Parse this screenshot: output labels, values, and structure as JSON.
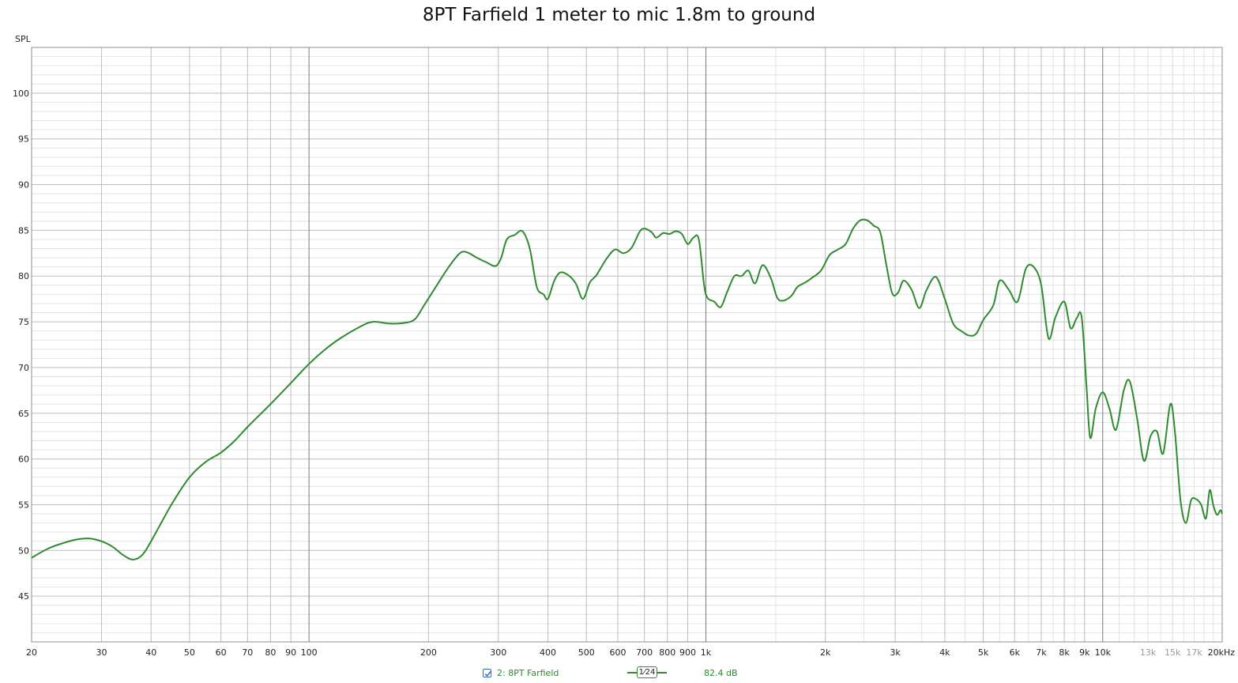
{
  "title": "8PT Farfield 1 meter to mic 1.8m to ground",
  "colors": {
    "series": "#2e8b2e",
    "grid_major": "#bdbdbd",
    "grid_minor": "#e2e2e2",
    "grid_decade": "#7a7a7a",
    "axis_text": "#222222",
    "checkbox": "#2a6fc9"
  },
  "legend": {
    "checkbox_icon": "checkbox-checked-icon",
    "checked": true,
    "series_label": "2: 8PT Farfield",
    "smoothing_label": "1⁄24",
    "value_label": "82.4 dB"
  },
  "chart_data": {
    "type": "line",
    "title": "8PT Farfield 1 meter to mic 1.8m to ground",
    "xlabel": "",
    "ylabel": "SPL",
    "x_unit": "Hz",
    "x_scale": "log",
    "xlim": [
      20,
      20000
    ],
    "ylim": [
      40,
      105
    ],
    "grid": true,
    "x_ticks": [
      {
        "value": 20,
        "label": "20"
      },
      {
        "value": 30,
        "label": "30"
      },
      {
        "value": 40,
        "label": "40"
      },
      {
        "value": 50,
        "label": "50"
      },
      {
        "value": 60,
        "label": "60"
      },
      {
        "value": 70,
        "label": "70"
      },
      {
        "value": 80,
        "label": "80"
      },
      {
        "value": 90,
        "label": "90"
      },
      {
        "value": 100,
        "label": "100"
      },
      {
        "value": 200,
        "label": "200"
      },
      {
        "value": 300,
        "label": "300"
      },
      {
        "value": 400,
        "label": "400"
      },
      {
        "value": 500,
        "label": "500"
      },
      {
        "value": 600,
        "label": "600"
      },
      {
        "value": 700,
        "label": "700"
      },
      {
        "value": 800,
        "label": "800"
      },
      {
        "value": 900,
        "label": "900"
      },
      {
        "value": 1000,
        "label": "1k"
      },
      {
        "value": 2000,
        "label": "2k"
      },
      {
        "value": 3000,
        "label": "3k"
      },
      {
        "value": 4000,
        "label": "4k"
      },
      {
        "value": 5000,
        "label": "5k"
      },
      {
        "value": 6000,
        "label": "6k"
      },
      {
        "value": 7000,
        "label": "7k"
      },
      {
        "value": 8000,
        "label": "8k"
      },
      {
        "value": 9000,
        "label": "9k"
      },
      {
        "value": 10000,
        "label": "10k"
      },
      {
        "value": 13000,
        "label": "13k",
        "faded": true
      },
      {
        "value": 15000,
        "label": "15k",
        "faded": true
      },
      {
        "value": 17000,
        "label": "17k",
        "faded": true
      },
      {
        "value": 20000,
        "label": "20kHz"
      }
    ],
    "y_ticks": [
      45,
      50,
      55,
      60,
      65,
      70,
      75,
      80,
      85,
      90,
      95,
      100
    ],
    "series": [
      {
        "name": "2: 8PT Farfield",
        "points": [
          [
            20,
            49.2
          ],
          [
            22,
            50.2
          ],
          [
            24,
            50.8
          ],
          [
            26,
            51.2
          ],
          [
            28,
            51.3
          ],
          [
            30,
            51.0
          ],
          [
            32,
            50.4
          ],
          [
            34,
            49.5
          ],
          [
            36,
            49.0
          ],
          [
            38,
            49.5
          ],
          [
            40,
            51.0
          ],
          [
            45,
            55.0
          ],
          [
            50,
            58.0
          ],
          [
            55,
            59.7
          ],
          [
            60,
            60.7
          ],
          [
            65,
            62.0
          ],
          [
            70,
            63.5
          ],
          [
            80,
            66.0
          ],
          [
            90,
            68.3
          ],
          [
            100,
            70.4
          ],
          [
            110,
            72.0
          ],
          [
            120,
            73.2
          ],
          [
            135,
            74.5
          ],
          [
            145,
            75.0
          ],
          [
            160,
            74.8
          ],
          [
            175,
            74.9
          ],
          [
            185,
            75.3
          ],
          [
            195,
            76.8
          ],
          [
            210,
            79.0
          ],
          [
            225,
            81.0
          ],
          [
            240,
            82.5
          ],
          [
            250,
            82.6
          ],
          [
            265,
            82.0
          ],
          [
            280,
            81.5
          ],
          [
            295,
            81.1
          ],
          [
            305,
            82.0
          ],
          [
            315,
            84.0
          ],
          [
            330,
            84.5
          ],
          [
            345,
            84.9
          ],
          [
            360,
            83.0
          ],
          [
            375,
            78.8
          ],
          [
            390,
            78.0
          ],
          [
            400,
            77.5
          ],
          [
            415,
            79.5
          ],
          [
            430,
            80.4
          ],
          [
            450,
            80.1
          ],
          [
            470,
            79.2
          ],
          [
            490,
            77.5
          ],
          [
            510,
            79.3
          ],
          [
            530,
            80.1
          ],
          [
            560,
            81.8
          ],
          [
            590,
            82.9
          ],
          [
            620,
            82.5
          ],
          [
            650,
            83.1
          ],
          [
            680,
            84.8
          ],
          [
            700,
            85.2
          ],
          [
            730,
            84.8
          ],
          [
            750,
            84.2
          ],
          [
            780,
            84.7
          ],
          [
            810,
            84.6
          ],
          [
            840,
            84.9
          ],
          [
            870,
            84.6
          ],
          [
            900,
            83.5
          ],
          [
            930,
            84.2
          ],
          [
            960,
            84.0
          ],
          [
            990,
            79.0
          ],
          [
            1010,
            77.6
          ],
          [
            1050,
            77.2
          ],
          [
            1090,
            76.6
          ],
          [
            1130,
            78.2
          ],
          [
            1180,
            80.0
          ],
          [
            1230,
            80.0
          ],
          [
            1280,
            80.6
          ],
          [
            1330,
            79.2
          ],
          [
            1390,
            81.2
          ],
          [
            1460,
            79.7
          ],
          [
            1510,
            77.7
          ],
          [
            1560,
            77.3
          ],
          [
            1640,
            77.8
          ],
          [
            1700,
            78.8
          ],
          [
            1780,
            79.3
          ],
          [
            1850,
            79.8
          ],
          [
            1950,
            80.6
          ],
          [
            2050,
            82.3
          ],
          [
            2150,
            82.9
          ],
          [
            2250,
            83.5
          ],
          [
            2350,
            85.2
          ],
          [
            2450,
            86.1
          ],
          [
            2550,
            86.1
          ],
          [
            2650,
            85.5
          ],
          [
            2750,
            84.8
          ],
          [
            2850,
            81.2
          ],
          [
            2950,
            78.1
          ],
          [
            3050,
            78.2
          ],
          [
            3150,
            79.5
          ],
          [
            3300,
            78.5
          ],
          [
            3450,
            76.5
          ],
          [
            3600,
            78.5
          ],
          [
            3800,
            79.9
          ],
          [
            4000,
            77.5
          ],
          [
            4200,
            74.8
          ],
          [
            4400,
            74.0
          ],
          [
            4600,
            73.5
          ],
          [
            4800,
            73.7
          ],
          [
            5000,
            75.2
          ],
          [
            5300,
            76.8
          ],
          [
            5500,
            79.5
          ],
          [
            5800,
            78.5
          ],
          [
            6100,
            77.2
          ],
          [
            6400,
            80.8
          ],
          [
            6700,
            81.0
          ],
          [
            7000,
            79.0
          ],
          [
            7300,
            73.2
          ],
          [
            7600,
            75.5
          ],
          [
            8000,
            77.2
          ],
          [
            8300,
            74.3
          ],
          [
            8600,
            75.4
          ],
          [
            8850,
            75.5
          ],
          [
            9100,
            68.0
          ],
          [
            9300,
            62.3
          ],
          [
            9600,
            65.5
          ],
          [
            10000,
            67.3
          ],
          [
            10400,
            65.5
          ],
          [
            10800,
            63.2
          ],
          [
            11300,
            67.5
          ],
          [
            11700,
            68.5
          ],
          [
            12200,
            64.5
          ],
          [
            12700,
            59.8
          ],
          [
            13200,
            62.5
          ],
          [
            13700,
            63.0
          ],
          [
            14200,
            60.6
          ],
          [
            14800,
            66.0
          ],
          [
            15200,
            63.0
          ],
          [
            15700,
            55.5
          ],
          [
            16200,
            53.0
          ],
          [
            16700,
            55.5
          ],
          [
            17200,
            55.6
          ],
          [
            17700,
            55.0
          ],
          [
            18200,
            53.5
          ],
          [
            18600,
            56.6
          ],
          [
            19000,
            54.9
          ],
          [
            19400,
            53.9
          ],
          [
            19800,
            54.4
          ],
          [
            20000,
            54.0
          ]
        ]
      }
    ]
  }
}
